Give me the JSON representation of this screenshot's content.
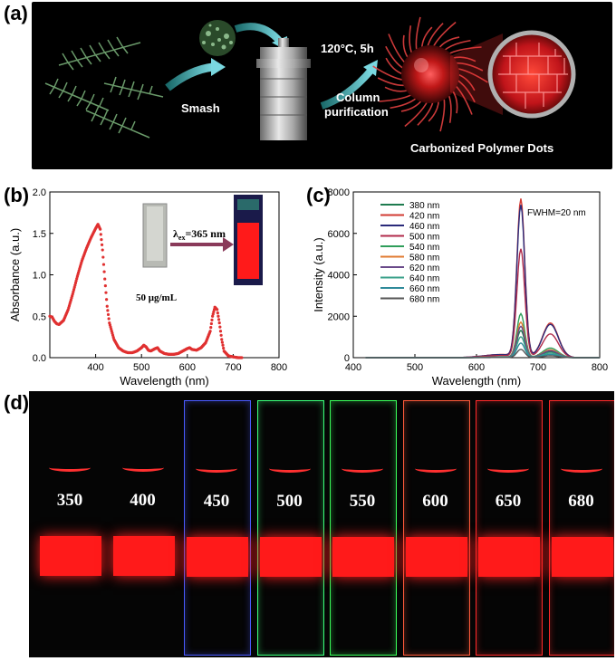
{
  "labels": {
    "a": "(a)",
    "b": "(b)",
    "c": "(c)",
    "d": "(d)"
  },
  "panel_a": {
    "smash": "Smash",
    "condition": "120°C, 5h",
    "purification_line1": "Column",
    "purification_line2": "purification",
    "product": "Carbonized Polymer Dots"
  },
  "panel_b_inset": {
    "concentration": "50 μg/mL",
    "excitation_prefix": "λ",
    "excitation_sub": "ex",
    "excitation_value": "=365 nm"
  },
  "panel_c_annotation": "FWHM=20 nm",
  "chart_data": [
    {
      "id": "absorbance",
      "type": "scatter",
      "xlabel": "Wavelength (nm)",
      "ylabel": "Absorbance (a.u.)",
      "xlim": [
        300,
        800
      ],
      "ylim": [
        0,
        2.0
      ],
      "xticks": [
        400,
        500,
        600,
        700,
        800
      ],
      "yticks": [
        0.0,
        0.5,
        1.0,
        1.5,
        2.0
      ],
      "ytick_labels": [
        "0.0",
        "0.5",
        "1.0",
        "1.5",
        "2.0"
      ],
      "color": "#e03030",
      "series": [
        {
          "x": [
            300,
            305,
            310,
            315,
            320,
            330,
            340,
            350,
            360,
            370,
            380,
            390,
            400,
            405,
            410,
            415,
            420,
            425,
            430,
            440,
            450,
            460,
            470,
            480,
            490,
            500,
            505,
            510,
            515,
            520,
            530,
            535,
            540,
            550,
            560,
            570,
            580,
            590,
            600,
            605,
            610,
            620,
            630,
            640,
            650,
            655,
            660,
            665,
            670,
            675,
            680,
            690,
            700,
            710,
            720
          ],
          "y": [
            0.5,
            0.49,
            0.44,
            0.41,
            0.4,
            0.45,
            0.58,
            0.77,
            0.98,
            1.17,
            1.32,
            1.45,
            1.56,
            1.61,
            1.55,
            1.3,
            0.95,
            0.62,
            0.42,
            0.22,
            0.12,
            0.08,
            0.06,
            0.06,
            0.08,
            0.12,
            0.15,
            0.13,
            0.09,
            0.08,
            0.11,
            0.12,
            0.08,
            0.05,
            0.04,
            0.04,
            0.05,
            0.08,
            0.11,
            0.12,
            0.1,
            0.09,
            0.12,
            0.18,
            0.32,
            0.5,
            0.61,
            0.58,
            0.42,
            0.22,
            0.08,
            0.02,
            0.01,
            0.0,
            0.0
          ]
        }
      ]
    },
    {
      "id": "emission",
      "type": "line",
      "xlabel": "Wavelength (nm)",
      "ylabel": "Intensity (a.u.)",
      "xlim": [
        400,
        800
      ],
      "ylim": [
        0,
        8000
      ],
      "xticks": [
        400,
        500,
        600,
        700,
        800
      ],
      "yticks": [
        0,
        2000,
        4000,
        6000,
        8000
      ],
      "legend": "top-left",
      "series": [
        {
          "name": "380 nm",
          "color": "#1e7b4f",
          "peak": 1300
        },
        {
          "name": "420 nm",
          "color": "#d23a32",
          "peak": 7600
        },
        {
          "name": "460 nm",
          "color": "#2a2a7a",
          "peak": 7300
        },
        {
          "name": "500 nm",
          "color": "#b02a4a",
          "peak": 5200
        },
        {
          "name": "540 nm",
          "color": "#2f9e5a",
          "peak": 2100
        },
        {
          "name": "580 nm",
          "color": "#e07a30",
          "peak": 1700
        },
        {
          "name": "620 nm",
          "color": "#6a4a8a",
          "peak": 1500
        },
        {
          "name": "640 nm",
          "color": "#3aa08a",
          "peak": 1000
        },
        {
          "name": "660 nm",
          "color": "#2f8a9a",
          "peak": 700
        },
        {
          "name": "680 nm",
          "color": "#555555",
          "peak": 400
        }
      ]
    }
  ],
  "panel_d": {
    "vials": [
      {
        "label": "350",
        "glow": "#ff2a2a"
      },
      {
        "label": "400",
        "glow": "#ff2a2a"
      },
      {
        "label": "450",
        "glow": "#4a5aff"
      },
      {
        "label": "500",
        "glow": "#3aff7a"
      },
      {
        "label": "550",
        "glow": "#3aff5a"
      },
      {
        "label": "600",
        "glow": "#ff5a3a"
      },
      {
        "label": "650",
        "glow": "#ff2a2a"
      },
      {
        "label": "680",
        "glow": "#ff2a2a"
      }
    ]
  }
}
